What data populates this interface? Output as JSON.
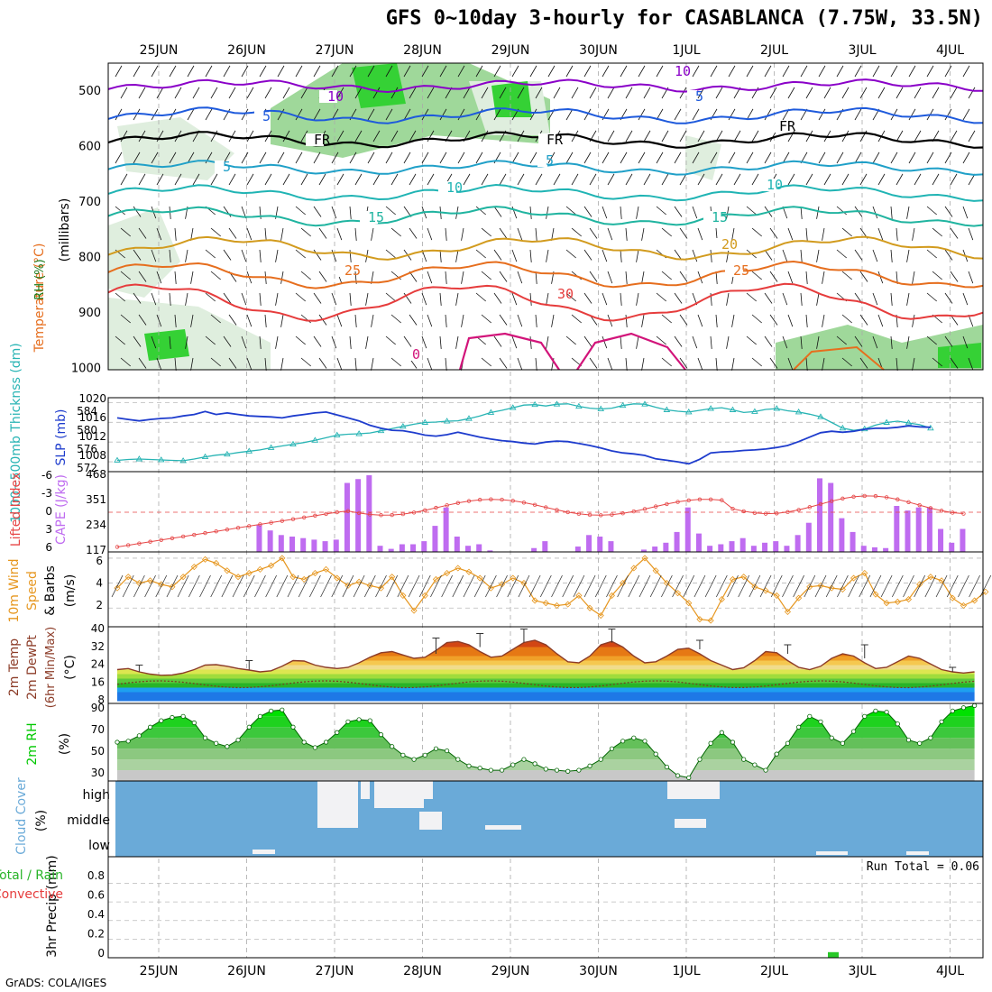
{
  "title": "GFS 0~10day 3-hourly for CASABLANCA (7.75W, 33.5N)",
  "credit": "GrADS: COLA/IGES",
  "dates": [
    "25JUN",
    "26JUN",
    "27JUN",
    "28JUN",
    "29JUN",
    "30JUN",
    "1JUL",
    "2JUL",
    "3JUL",
    "4JUL"
  ],
  "colors": {
    "rh": "#33cc33",
    "temp_purple": "#8a00c8",
    "temp_blue": "#1e5adc",
    "temp_cyan": "#20a0c8",
    "temp_teal": "#20b4a0",
    "temp_gold": "#d29b1e",
    "temp_orange": "#e66e1e",
    "temp_red": "#e63c3c",
    "slp": "#1e3ccd",
    "thick": "#28b4b4",
    "cape": "#bf6cf0",
    "li": "#e64646",
    "wind10": "#e6961e",
    "t2m": "#8c3c28",
    "rh2m": "#00c800",
    "cloud": "#6aaad8"
  },
  "panels": {
    "upper": {
      "axis_title": "Wind (m/s)",
      "temp_label": "Temperature (°C)",
      "rh_label": "RH (%)",
      "unit": "(millibars)",
      "levels": [
        "500",
        "600",
        "700",
        "800",
        "900",
        "1000"
      ],
      "contour_labels": [
        "10",
        "5",
        "FR",
        "5",
        "10",
        "15",
        "20",
        "25",
        "30",
        "0"
      ]
    },
    "slp": {
      "label_thick": "1000~500mb Thicknss (dm)",
      "label_slp": "SLP (mb)",
      "left_ticks": [
        "584",
        "580",
        "576",
        "572"
      ],
      "right_ticks": [
        "1020",
        "1016",
        "1012",
        "1008"
      ]
    },
    "cape": {
      "label_li": "Lifted Index",
      "label_cape": "CAPE (J/kg)",
      "left_ticks": [
        "-6",
        "-3",
        "0",
        "3",
        "6"
      ],
      "right_ticks": [
        "468",
        "351",
        "234",
        "117"
      ]
    },
    "wind": {
      "label_1": "10m Wind",
      "label_2": "Speed",
      "label_3": "& Barbs",
      "unit": "(m/s)",
      "ticks": [
        "6",
        "4",
        "2"
      ]
    },
    "temp": {
      "label_1": "2m Temp",
      "label_2": "2m DewPt",
      "label_3": "(6hr Min/Max)",
      "unit": "(°C)",
      "ticks": [
        "40",
        "32",
        "24",
        "16",
        "8"
      ]
    },
    "rh": {
      "label": "2m RH",
      "unit": "(%)",
      "ticks": [
        "90",
        "70",
        "50",
        "30"
      ]
    },
    "cloud": {
      "label": "Cloud Cover",
      "unit": "(%)",
      "levels": [
        "high",
        "middle",
        "low"
      ]
    },
    "precip": {
      "label_1": "3hr Precip (mm)",
      "label_total": "Total / Rain",
      "label_conv": "Convective",
      "run_total": "Run Total = 0.06",
      "ticks": [
        "0.8",
        "0.6",
        "0.4",
        "0.2",
        "0"
      ]
    }
  },
  "chart_data": [
    {
      "type": "line",
      "title": "SLP (mb)",
      "ylim": [
        1006,
        1021
      ],
      "x_start": "25JUN",
      "step_hours": 3,
      "series": [
        {
          "name": "SLP",
          "values": [
            1016.9,
            1016.6,
            1016.3,
            1016.6,
            1016.8,
            1016.9,
            1017.3,
            1017.6,
            1018.2,
            1017.6,
            1017.9,
            1017.6,
            1017.3,
            1017.2,
            1017.1,
            1016.9,
            1017.3,
            1017.6,
            1017.9,
            1018.1,
            1017.5,
            1016.9,
            1016.3,
            1015.4,
            1014.8,
            1014.4,
            1014.3,
            1013.9,
            1013.4,
            1013.2,
            1013.5,
            1014.0,
            1013.5,
            1013.0,
            1012.6,
            1012.3,
            1012.1,
            1011.8,
            1011.6,
            1012.0,
            1012.2,
            1012.1,
            1011.7,
            1011.3,
            1010.8,
            1010.2,
            1009.8,
            1009.6,
            1009.3,
            1008.6,
            1008.3,
            1008.0,
            1007.6,
            1008.5,
            1009.8,
            1010.0,
            1010.1,
            1010.3,
            1010.4,
            1010.6,
            1010.9,
            1011.3,
            1012.1,
            1013.0,
            1013.9,
            1014.2,
            1014.0,
            1014.2,
            1014.6,
            1014.8,
            1014.8,
            1015.0,
            1015.3,
            1015.1,
            1015.0
          ]
        },
        {
          "name": "1000~500mb Thicknss",
          "values": [
            572.6,
            572.8,
            572.9,
            572.8,
            572.7,
            572.6,
            572.5,
            572.9,
            573.4,
            573.8,
            574.0,
            574.4,
            574.7,
            575.0,
            575.5,
            575.9,
            576.3,
            576.7,
            577.2,
            577.8,
            578.4,
            578.6,
            578.7,
            578.9,
            579.4,
            579.9,
            580.4,
            580.9,
            581.3,
            581.4,
            581.6,
            581.7,
            582.2,
            582.8,
            583.6,
            584.1,
            584.7,
            585.3,
            585.4,
            585.1,
            585.5,
            585.6,
            585.0,
            584.6,
            584.4,
            584.6,
            585.2,
            585.6,
            585.5,
            584.8,
            584.2,
            583.9,
            583.7,
            584.1,
            584.5,
            584.7,
            584.2,
            583.6,
            583.8,
            584.3,
            584.5,
            584.0,
            583.7,
            583.2,
            582.6,
            581.3,
            580.0,
            579.5,
            579.8,
            580.7,
            581.3,
            581.6,
            581.2,
            580.8,
            580.0
          ]
        }
      ]
    },
    {
      "type": "bar",
      "title": "CAPE (J/kg) / Lifted Index",
      "x_start": "25JUN",
      "step_hours": 3,
      "series": [
        {
          "name": "CAPE",
          "values": [
            0,
            0,
            0,
            0,
            0,
            0,
            0,
            0,
            0,
            0,
            0,
            0,
            0,
            0,
            0,
            0,
            0,
            0,
            0,
            0,
            0,
            0,
            0,
            0,
            0,
            0,
            0,
            0,
            0,
            0,
            0,
            0,
            0,
            0,
            0,
            0,
            0,
            0,
            0,
            0,
            0,
            0,
            0,
            0,
            0,
            0,
            0,
            0,
            0,
            0,
            0,
            0,
            0,
            0,
            0,
            0,
            0,
            0,
            0,
            0,
            0,
            0,
            0,
            0,
            0,
            0,
            0,
            0,
            0,
            0,
            0,
            0,
            0,
            0,
            0
          ],
          "note": "bar heights below"
        },
        {
          "name": "CAPE bars",
          "values": [
            0,
            0,
            0,
            0,
            0,
            0,
            0,
            0,
            0,
            0,
            0,
            0,
            0,
            0,
            0,
            0,
            0,
            0,
            0,
            0,
            0,
            0,
            0,
            0,
            0,
            0,
            0,
            0,
            0,
            0,
            0,
            0,
            0,
            0,
            0,
            0,
            0,
            0,
            0,
            0,
            0,
            0,
            0,
            0,
            0,
            0,
            0,
            0,
            0,
            0,
            0,
            0,
            0,
            0,
            0,
            0,
            0,
            0,
            0,
            0,
            0,
            0,
            0,
            0,
            0,
            0,
            0,
            0,
            0,
            0,
            0,
            0,
            0,
            0,
            0
          ]
        }
      ]
    }
  ]
}
